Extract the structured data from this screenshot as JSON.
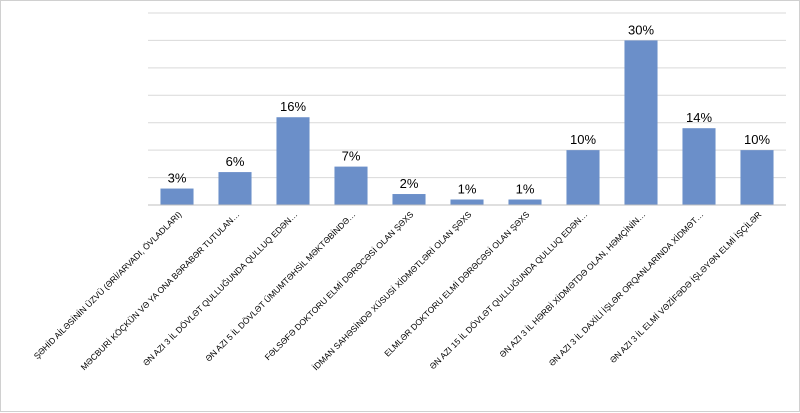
{
  "chart_data": {
    "type": "bar",
    "categories": [
      "ŞƏHİD AİLƏSİNİN ÜZVÜ (ƏRİ/ARVADI, ÖVLADLARI)",
      "MƏCBURİ KÖÇKÜN VƏ YA ONA BƏRABƏR TUTULAN…",
      "ƏN AZI 3 İL DÖVLƏT QULLUĞUNDA QULLUQ EDƏN…",
      "ƏN AZI 5 İL DÖVLƏT ÜMUMTƏHSİL MƏKTƏBİNDƏ…",
      "FƏLSƏFƏ DOKTORU ELMİ DƏRƏCƏSİ OLAN ŞƏXS",
      "İDMAN SAHƏSİNDƏ XÜSUSİ XİDMƏTLƏRİ OLAN ŞƏXS",
      "ELMLƏR DOKTORU ELMİ DƏRƏCƏSİ OLAN ŞƏXS",
      "ƏN AZI 15 İL DÖVLƏT QULLUĞUNDA QULLUQ EDƏN…",
      "ƏN AZI 3 İL HƏRBİ XİDMƏTDƏ OLAN, HƏMÇİNİN…",
      "ƏN AZI 3 İL DAXİLİ İŞLƏR ORQANLARINDA XİDMƏT…",
      "ƏN AZI 3 İL ELMİ VƏZİFƏDƏ İŞLƏYƏN ELMİ İŞÇİLƏR"
    ],
    "values": [
      3,
      6,
      16,
      7,
      2,
      1,
      1,
      10,
      30,
      14,
      10
    ],
    "data_labels": [
      "3%",
      "6%",
      "16%",
      "7%",
      "2%",
      "1%",
      "1%",
      "10%",
      "30%",
      "14%",
      "10%"
    ],
    "ylim": [
      0,
      35
    ],
    "grid": true,
    "legend": "none",
    "bar_color": "#6b8fc9"
  }
}
